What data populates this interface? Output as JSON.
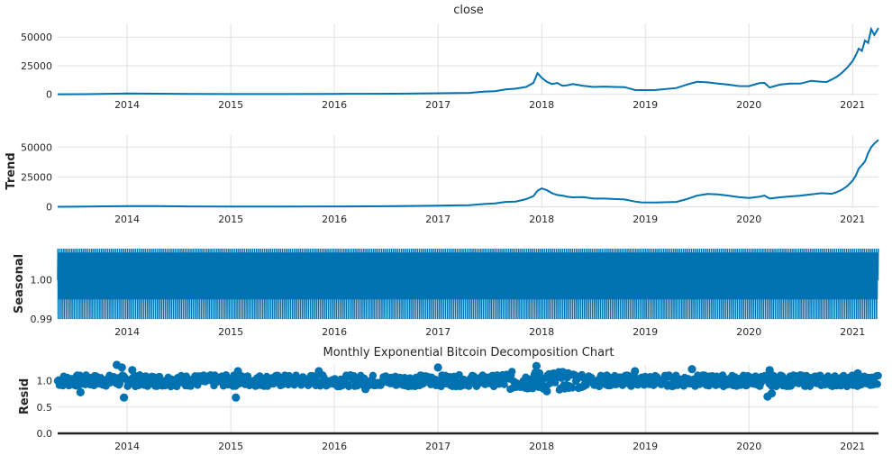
{
  "figure": {
    "title": "Monthly Exponential Bitcoin Decomposition Chart",
    "line_color": "#0072b2",
    "grid_color": "#d9d9d9",
    "zero_line_color": "#222222"
  },
  "chart_data": [
    {
      "type": "line",
      "panel": "observed",
      "title": "close",
      "ylabel": "",
      "xlim": [
        2013.33,
        2021.25
      ],
      "ylim": [
        -1000,
        62000
      ],
      "yticks": [
        0,
        25000,
        50000
      ],
      "ytick_labels": [
        "0",
        "25000",
        "50000"
      ],
      "xticks": [
        "2014",
        "2015",
        "2016",
        "2017",
        "2018",
        "2019",
        "2020",
        "2021"
      ],
      "grid": true,
      "series": [
        {
          "x": [
            2013.33,
            2013.6,
            2013.9,
            2014.0,
            2014.3,
            2014.6,
            2015.0,
            2015.5,
            2016.0,
            2016.3,
            2016.6,
            2017.0,
            2017.3,
            2017.45,
            2017.55,
            2017.65,
            2017.75,
            2017.85,
            2017.92,
            2017.96,
            2018.0,
            2018.05,
            2018.1,
            2018.15,
            2018.2,
            2018.25,
            2018.3,
            2018.4,
            2018.5,
            2018.6,
            2018.7,
            2018.8,
            2018.9,
            2018.96,
            2019.1,
            2019.3,
            2019.4,
            2019.5,
            2019.6,
            2019.7,
            2019.8,
            2019.9,
            2020.0,
            2020.1,
            2020.15,
            2020.2,
            2020.3,
            2020.4,
            2020.5,
            2020.6,
            2020.7,
            2020.75,
            2020.8,
            2020.85,
            2020.9,
            2020.95,
            2021.0,
            2021.03,
            2021.06,
            2021.09,
            2021.12,
            2021.15,
            2021.18,
            2021.21,
            2021.25
          ],
          "y": [
            100,
            200,
            600,
            800,
            600,
            400,
            280,
            250,
            430,
            480,
            600,
            1000,
            1300,
            2500,
            2800,
            4300,
            5000,
            6500,
            10000,
            18500,
            14500,
            11000,
            9000,
            10000,
            7500,
            8000,
            9000,
            7500,
            6500,
            6800,
            6500,
            6300,
            3800,
            3700,
            3800,
            5500,
            8500,
            11000,
            10500,
            9500,
            8500,
            7300,
            7200,
            9800,
            10000,
            6000,
            8500,
            9500,
            9500,
            11800,
            11000,
            10800,
            13000,
            15500,
            19000,
            23500,
            29000,
            34000,
            40000,
            38000,
            47000,
            45000,
            57000,
            52000,
            58000
          ]
        }
      ]
    },
    {
      "type": "line",
      "panel": "trend",
      "title": "",
      "ylabel": "Trend",
      "xlim": [
        2013.33,
        2021.25
      ],
      "ylim": [
        -1000,
        60000
      ],
      "yticks": [
        0,
        25000,
        50000
      ],
      "ytick_labels": [
        "0",
        "25000",
        "50000"
      ],
      "xticks": [
        "2014",
        "2015",
        "2016",
        "2017",
        "2018",
        "2019",
        "2020",
        "2021"
      ],
      "grid": true,
      "series": [
        {
          "x": [
            2013.33,
            2013.6,
            2013.9,
            2014.0,
            2014.3,
            2014.6,
            2015.0,
            2015.5,
            2016.0,
            2016.3,
            2016.6,
            2017.0,
            2017.3,
            2017.45,
            2017.55,
            2017.65,
            2017.75,
            2017.85,
            2017.92,
            2017.96,
            2018.0,
            2018.05,
            2018.1,
            2018.15,
            2018.2,
            2018.25,
            2018.3,
            2018.4,
            2018.5,
            2018.6,
            2018.7,
            2018.8,
            2018.9,
            2018.96,
            2019.1,
            2019.3,
            2019.4,
            2019.5,
            2019.6,
            2019.7,
            2019.8,
            2019.9,
            2020.0,
            2020.1,
            2020.15,
            2020.2,
            2020.3,
            2020.4,
            2020.5,
            2020.6,
            2020.7,
            2020.75,
            2020.8,
            2020.85,
            2020.9,
            2020.95,
            2021.0,
            2021.03,
            2021.06,
            2021.09,
            2021.12,
            2021.15,
            2021.18,
            2021.21,
            2021.25
          ],
          "y": [
            150,
            300,
            600,
            750,
            650,
            450,
            280,
            260,
            430,
            500,
            650,
            1000,
            1500,
            2500,
            3000,
            4200,
            4500,
            6500,
            9000,
            13500,
            15500,
            14000,
            11500,
            10000,
            9500,
            8500,
            8000,
            8200,
            7000,
            7000,
            6600,
            6200,
            4500,
            3800,
            3700,
            4200,
            6500,
            9500,
            10800,
            10500,
            9500,
            8200,
            7500,
            8500,
            9500,
            7000,
            8000,
            8800,
            9500,
            10500,
            11500,
            11200,
            11000,
            12500,
            14500,
            17500,
            22000,
            26000,
            32000,
            35000,
            38000,
            45000,
            50000,
            53000,
            56000
          ]
        }
      ]
    },
    {
      "type": "line",
      "panel": "seasonal",
      "title": "",
      "ylabel": "Seasonal",
      "xlim": [
        2013.33,
        2021.25
      ],
      "ylim": [
        0.99,
        1.008
      ],
      "yticks": [
        0.99,
        1.0
      ],
      "ytick_labels": [
        "0.99",
        "1.00"
      ],
      "xticks": [
        "2014",
        "2015",
        "2016",
        "2017",
        "2018",
        "2019",
        "2020",
        "2021"
      ],
      "grid": true,
      "period_days": 7,
      "cycle_values": [
        1.0,
        1.008,
        0.99,
        1.004,
        0.995,
        1.007,
        1.001
      ],
      "note": ""
    },
    {
      "type": "scatter",
      "panel": "resid",
      "title": "Monthly Exponential Bitcoin Decomposition Chart",
      "ylabel": "Resid",
      "xlim": [
        2013.33,
        2021.25
      ],
      "ylim": [
        0.0,
        1.3
      ],
      "yticks": [
        0.0,
        0.5,
        1.0
      ],
      "ytick_labels": [
        "0.0",
        "0.5",
        "1.0"
      ],
      "xticks": [
        "2014",
        "2015",
        "2016",
        "2017",
        "2018",
        "2019",
        "2020",
        "2021"
      ],
      "grid": true,
      "center": 1.0,
      "outliers": [
        {
          "x": 2013.9,
          "y": 1.3
        },
        {
          "x": 2013.95,
          "y": 1.25
        },
        {
          "x": 2013.97,
          "y": 0.68
        },
        {
          "x": 2014.05,
          "y": 1.2
        },
        {
          "x": 2013.55,
          "y": 0.78
        },
        {
          "x": 2015.05,
          "y": 0.68
        },
        {
          "x": 2015.07,
          "y": 1.18
        },
        {
          "x": 2015.85,
          "y": 1.18
        },
        {
          "x": 2016.3,
          "y": 0.84
        },
        {
          "x": 2017.0,
          "y": 1.25
        },
        {
          "x": 2017.95,
          "y": 1.28
        },
        {
          "x": 2018.05,
          "y": 0.8
        },
        {
          "x": 2018.9,
          "y": 1.18
        },
        {
          "x": 2019.45,
          "y": 1.22
        },
        {
          "x": 2020.18,
          "y": 0.7
        },
        {
          "x": 2020.2,
          "y": 1.2
        },
        {
          "x": 2020.22,
          "y": 0.76
        },
        {
          "x": 2021.05,
          "y": 1.14
        }
      ]
    }
  ]
}
